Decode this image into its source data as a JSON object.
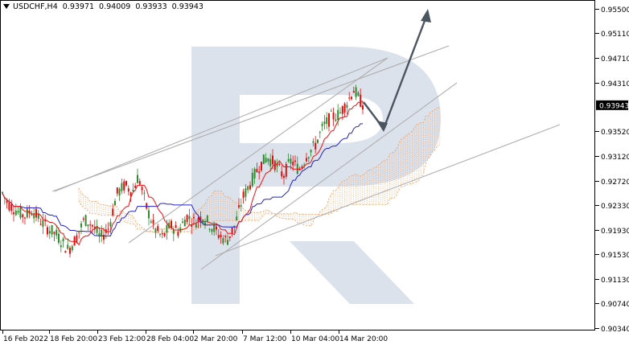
{
  "header": {
    "symbol": "USDCHF,H4",
    "open": "0.93971",
    "high": "0.94009",
    "low": "0.93933",
    "close": "0.93943"
  },
  "colors": {
    "bull": "#2e8b2e",
    "bear": "#e01010",
    "tenkan": "#ee1111",
    "kijun": "#2222cc",
    "cloud": "#f0a060",
    "channel": "#b0b0b0",
    "arrow": "#4a5560",
    "price_tag_bg": "#000000",
    "watermark": "#dde3ee"
  },
  "chart_data": {
    "type": "candlestick",
    "symbol": "USDCHF",
    "timeframe": "H4",
    "ylim": [
      0.9034,
      0.9555
    ],
    "y_ticks": [
      "0.95500",
      "0.95110",
      "0.94710",
      "0.94310",
      "0.93520",
      "0.93120",
      "0.92720",
      "0.92330",
      "0.91930",
      "0.91530",
      "0.91130",
      "0.90740",
      "0.90340"
    ],
    "current_price": "0.93943",
    "x_ticks": [
      "16 Feb 2022",
      "18 Feb 20:00",
      "23 Feb 12:00",
      "28 Feb 04:00",
      "2 Mar 20:00",
      "7 Mar 12:00",
      "10 Mar 04:00",
      "14 Mar 20:00"
    ],
    "grid": true
  }
}
